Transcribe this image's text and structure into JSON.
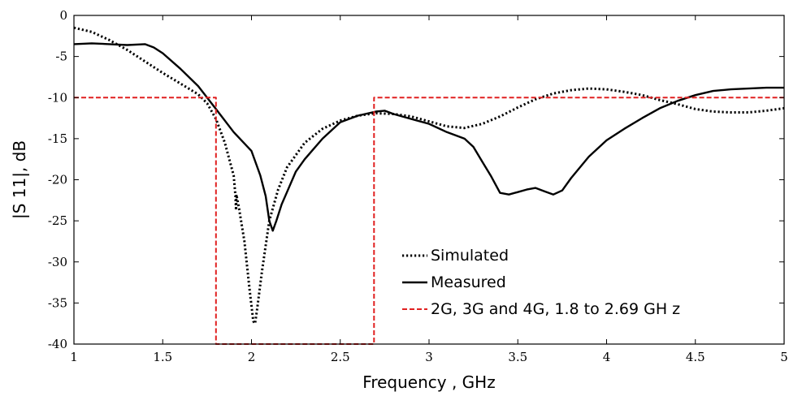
{
  "chart_data": {
    "type": "line",
    "title": "",
    "xlabel": "Frequency , GHz",
    "ylabel": "|S 11|,  dB",
    "xlim": [
      1,
      5
    ],
    "ylim": [
      -40,
      0
    ],
    "xticks": [
      1,
      1.5,
      2,
      2.5,
      3,
      3.5,
      4,
      4.5,
      5
    ],
    "xtick_labels": [
      "1",
      "1.5",
      "2",
      "2.5",
      "3",
      "3.5",
      "4",
      "4.5",
      "5"
    ],
    "yticks": [
      0,
      -5,
      -10,
      -15,
      -20,
      -25,
      -30,
      -35,
      -40
    ],
    "ytick_labels": [
      "0",
      "-5",
      "-10",
      "-15",
      "-20",
      "-25",
      "-30",
      "-35",
      "-40"
    ],
    "grid": false,
    "legend_position": "bottom-right",
    "series": [
      {
        "name": "Simulated",
        "color": "#000000",
        "style": "dotted",
        "points": [
          [
            1.0,
            -1.5
          ],
          [
            1.1,
            -2.0
          ],
          [
            1.2,
            -3.0
          ],
          [
            1.3,
            -4.2
          ],
          [
            1.4,
            -5.6
          ],
          [
            1.5,
            -7.0
          ],
          [
            1.6,
            -8.3
          ],
          [
            1.7,
            -9.6
          ],
          [
            1.75,
            -10.7
          ],
          [
            1.8,
            -12.6
          ],
          [
            1.85,
            -15.5
          ],
          [
            1.9,
            -19.5
          ],
          [
            1.91,
            -22.0
          ],
          [
            1.913,
            -23.7
          ],
          [
            1.915,
            -21.8
          ],
          [
            1.93,
            -23.5
          ],
          [
            1.96,
            -27.5
          ],
          [
            1.99,
            -33.5
          ],
          [
            2.01,
            -37.2
          ],
          [
            2.02,
            -37.5
          ],
          [
            2.03,
            -36.0
          ],
          [
            2.06,
            -31.0
          ],
          [
            2.1,
            -25.0
          ],
          [
            2.15,
            -21.2
          ],
          [
            2.2,
            -18.5
          ],
          [
            2.3,
            -15.5
          ],
          [
            2.4,
            -13.8
          ],
          [
            2.5,
            -12.8
          ],
          [
            2.6,
            -12.2
          ],
          [
            2.7,
            -11.9
          ],
          [
            2.8,
            -12.0
          ],
          [
            2.9,
            -12.3
          ],
          [
            3.0,
            -12.9
          ],
          [
            3.1,
            -13.5
          ],
          [
            3.2,
            -13.7
          ],
          [
            3.3,
            -13.2
          ],
          [
            3.4,
            -12.3
          ],
          [
            3.5,
            -11.2
          ],
          [
            3.6,
            -10.2
          ],
          [
            3.7,
            -9.5
          ],
          [
            3.8,
            -9.1
          ],
          [
            3.9,
            -8.9
          ],
          [
            4.0,
            -9.0
          ],
          [
            4.1,
            -9.3
          ],
          [
            4.2,
            -9.7
          ],
          [
            4.3,
            -10.3
          ],
          [
            4.4,
            -10.8
          ],
          [
            4.5,
            -11.4
          ],
          [
            4.6,
            -11.7
          ],
          [
            4.7,
            -11.8
          ],
          [
            4.8,
            -11.8
          ],
          [
            4.9,
            -11.6
          ],
          [
            5.0,
            -11.3
          ]
        ]
      },
      {
        "name": "Measured",
        "color": "#000000",
        "style": "solid",
        "points": [
          [
            1.0,
            -3.5
          ],
          [
            1.1,
            -3.4
          ],
          [
            1.2,
            -3.5
          ],
          [
            1.3,
            -3.6
          ],
          [
            1.4,
            -3.5
          ],
          [
            1.45,
            -3.9
          ],
          [
            1.5,
            -4.6
          ],
          [
            1.6,
            -6.5
          ],
          [
            1.7,
            -8.6
          ],
          [
            1.8,
            -11.4
          ],
          [
            1.9,
            -14.2
          ],
          [
            2.0,
            -16.5
          ],
          [
            2.05,
            -19.5
          ],
          [
            2.08,
            -22.0
          ],
          [
            2.1,
            -25.0
          ],
          [
            2.12,
            -26.2
          ],
          [
            2.14,
            -25.0
          ],
          [
            2.17,
            -23.0
          ],
          [
            2.2,
            -21.5
          ],
          [
            2.25,
            -19.0
          ],
          [
            2.3,
            -17.5
          ],
          [
            2.4,
            -15.0
          ],
          [
            2.5,
            -13.0
          ],
          [
            2.6,
            -12.2
          ],
          [
            2.7,
            -11.7
          ],
          [
            2.75,
            -11.6
          ],
          [
            2.8,
            -12.0
          ],
          [
            2.9,
            -12.6
          ],
          [
            3.0,
            -13.2
          ],
          [
            3.1,
            -14.2
          ],
          [
            3.2,
            -15.0
          ],
          [
            3.25,
            -16.0
          ],
          [
            3.3,
            -17.8
          ],
          [
            3.35,
            -19.6
          ],
          [
            3.4,
            -21.6
          ],
          [
            3.45,
            -21.8
          ],
          [
            3.5,
            -21.5
          ],
          [
            3.55,
            -21.2
          ],
          [
            3.6,
            -21.0
          ],
          [
            3.65,
            -21.4
          ],
          [
            3.7,
            -21.8
          ],
          [
            3.75,
            -21.3
          ],
          [
            3.8,
            -19.8
          ],
          [
            3.9,
            -17.2
          ],
          [
            4.0,
            -15.2
          ],
          [
            4.1,
            -13.8
          ],
          [
            4.2,
            -12.5
          ],
          [
            4.3,
            -11.3
          ],
          [
            4.4,
            -10.4
          ],
          [
            4.5,
            -9.7
          ],
          [
            4.6,
            -9.2
          ],
          [
            4.7,
            -9.0
          ],
          [
            4.8,
            -8.9
          ],
          [
            4.9,
            -8.8
          ],
          [
            5.0,
            -8.8
          ]
        ]
      },
      {
        "name": "2G, 3G and 4G, 1.8 to 2.69  GH z",
        "color": "#e02020",
        "style": "dashed",
        "points": [
          [
            1.0,
            -10
          ],
          [
            1.8,
            -10
          ],
          [
            1.8,
            -40
          ],
          [
            2.69,
            -40
          ],
          [
            2.69,
            -10
          ],
          [
            5.0,
            -10
          ]
        ]
      }
    ]
  }
}
